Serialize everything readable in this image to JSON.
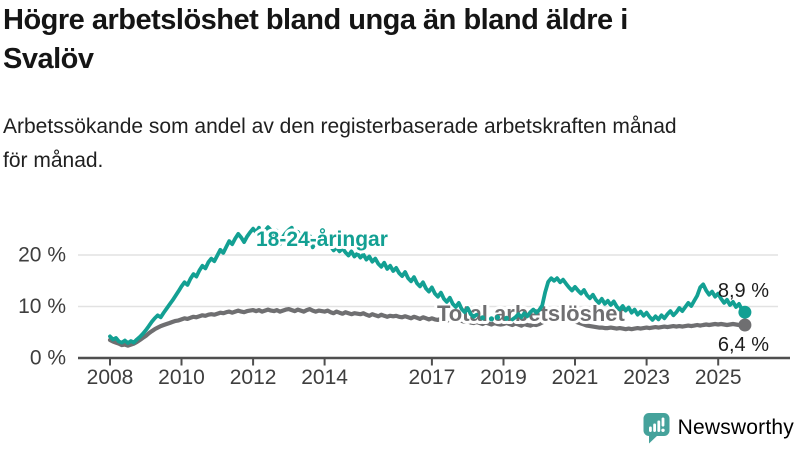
{
  "header": {
    "title": "Högre arbetslöshet bland unga än bland äldre i\nSvalöv",
    "subtitle": "Arbetssökande som andel av den registerbaserade arbetskraften månad\nför månad."
  },
  "chart_data": {
    "type": "line",
    "title": "Högre arbetslöshet bland unga än bland äldre i Svalöv",
    "unit": "%",
    "frequency": "monthly",
    "x_start": "2008-01",
    "x_end": "2025-10",
    "ylim": [
      0,
      27
    ],
    "grid": "horizontal",
    "legend_position": "inline-labels",
    "y_ticks": [
      {
        "value": 0,
        "label": "0 %"
      },
      {
        "value": 10,
        "label": "10 %"
      },
      {
        "value": 20,
        "label": "20 %"
      }
    ],
    "x_ticks": [
      {
        "year": 2008,
        "label": "2008"
      },
      {
        "year": 2010,
        "label": "2010"
      },
      {
        "year": 2012,
        "label": "2012"
      },
      {
        "year": 2014,
        "label": "2014"
      },
      {
        "year": 2017,
        "label": "2017"
      },
      {
        "year": 2019,
        "label": "2019"
      },
      {
        "year": 2021,
        "label": "2021"
      },
      {
        "year": 2023,
        "label": "2023"
      },
      {
        "year": 2025,
        "label": "2025"
      }
    ],
    "series": [
      {
        "name": "18-24-åringar",
        "color": "#13a093",
        "end_label": "8,9 %",
        "last_value": 8.9,
        "values": [
          4.2,
          3.6,
          3.9,
          3.2,
          3.0,
          3.4,
          2.9,
          3.3,
          3.0,
          3.6,
          4.1,
          4.7,
          5.4,
          6.2,
          7.0,
          7.7,
          8.3,
          7.9,
          8.8,
          9.6,
          10.4,
          11.2,
          12.1,
          13.0,
          13.9,
          14.7,
          14.2,
          15.4,
          16.3,
          15.8,
          17.0,
          17.9,
          17.4,
          18.6,
          19.3,
          18.8,
          19.9,
          21.0,
          20.4,
          21.6,
          22.7,
          22.1,
          23.2,
          24.1,
          23.4,
          22.5,
          23.6,
          24.4,
          25.1,
          24.4,
          25.3,
          21.9,
          24.7,
          25.4,
          24.8,
          23.8,
          24.7,
          22.1,
          23.5,
          24.3,
          24.9,
          25.3,
          22.3,
          24.5,
          23.7,
          21.7,
          23.1,
          23.7,
          21.5,
          22.5,
          23.3,
          22.7,
          22.1,
          22.7,
          21.7,
          20.9,
          21.5,
          20.7,
          21.3,
          20.5,
          19.9,
          20.7,
          19.7,
          20.3,
          19.5,
          20.1,
          19.1,
          19.7,
          18.7,
          19.3,
          18.3,
          17.7,
          18.5,
          17.3,
          17.9,
          16.9,
          17.5,
          16.5,
          15.9,
          16.7,
          15.5,
          14.9,
          15.7,
          14.5,
          13.9,
          14.7,
          13.5,
          12.9,
          13.7,
          12.5,
          11.9,
          12.7,
          11.5,
          10.9,
          11.7,
          10.5,
          9.9,
          10.7,
          9.5,
          8.9,
          9.7,
          8.5,
          8.0,
          8.4,
          null,
          7.8,
          null,
          null,
          7.6,
          null,
          7.9,
          null,
          null,
          7.7,
          null,
          7.5,
          7.9,
          8.5,
          7.9,
          8.7,
          8.1,
          8.9,
          9.4,
          8.8,
          9.3,
          10.2,
          12.8,
          14.8,
          15.5,
          15.0,
          15.5,
          14.7,
          15.2,
          14.4,
          13.7,
          13.1,
          13.8,
          13.1,
          12.5,
          13.2,
          12.2,
          11.6,
          12.3,
          11.3,
          10.7,
          11.5,
          10.5,
          11.1,
          10.3,
          11.0,
          10.0,
          9.4,
          10.1,
          9.2,
          9.8,
          8.8,
          9.4,
          8.4,
          9.0,
          8.2,
          8.8,
          8.0,
          7.4,
          8.1,
          7.5,
          8.3,
          7.7,
          8.5,
          9.1,
          8.3,
          8.9,
          9.7,
          9.1,
          9.9,
          10.7,
          10.1,
          11.1,
          12.1,
          13.7,
          14.3,
          13.1,
          12.3,
          12.9,
          11.9,
          12.5,
          11.5,
          10.7,
          11.3,
          10.3,
          10.9,
          9.9,
          10.5,
          9.4,
          8.9
        ]
      },
      {
        "name": "Total arbetslöshet",
        "color": "#6f6f71",
        "end_label": "6,4 %",
        "last_value": 6.4,
        "values": [
          3.5,
          3.2,
          3.0,
          2.8,
          2.5,
          2.6,
          2.4,
          2.6,
          2.8,
          3.1,
          3.5,
          3.9,
          4.3,
          4.8,
          5.2,
          5.6,
          5.9,
          6.2,
          6.4,
          6.6,
          6.8,
          7.0,
          7.2,
          7.3,
          7.5,
          7.7,
          7.6,
          7.8,
          8.0,
          7.9,
          8.1,
          8.3,
          8.2,
          8.4,
          8.5,
          8.4,
          8.6,
          8.8,
          8.7,
          8.9,
          9.0,
          8.8,
          9.0,
          9.2,
          9.0,
          8.9,
          9.1,
          9.2,
          9.3,
          9.1,
          9.3,
          9.0,
          9.2,
          9.4,
          9.2,
          9.1,
          9.3,
          9.0,
          9.2,
          9.4,
          9.5,
          9.3,
          9.1,
          9.4,
          9.2,
          9.0,
          9.3,
          9.5,
          9.2,
          9.0,
          9.2,
          9.1,
          9.0,
          9.2,
          8.9,
          8.7,
          9.0,
          8.8,
          8.6,
          8.9,
          8.7,
          8.5,
          8.7,
          8.6,
          8.5,
          8.7,
          8.4,
          8.2,
          8.5,
          8.3,
          8.1,
          8.4,
          8.2,
          8.0,
          8.2,
          8.1,
          8.2,
          8.0,
          7.9,
          8.1,
          7.9,
          7.7,
          8.0,
          7.8,
          7.6,
          7.9,
          7.7,
          7.5,
          7.7,
          7.5,
          7.4,
          7.6,
          7.4,
          7.2,
          7.5,
          7.3,
          7.1,
          7.3,
          7.2,
          7.0,
          7.1,
          6.9,
          6.8,
          7.0,
          6.8,
          6.6,
          6.9,
          6.7,
          6.5,
          6.8,
          6.6,
          6.5,
          6.6,
          6.8,
          6.6,
          6.4,
          6.7,
          6.5,
          6.3,
          6.6,
          6.4,
          6.3,
          6.5,
          6.4,
          6.6,
          6.9,
          7.5,
          7.9,
          8.1,
          8.0,
          8.2,
          8.1,
          7.9,
          7.7,
          7.5,
          7.3,
          7.1,
          6.9,
          6.7,
          6.5,
          6.3,
          6.2,
          6.1,
          6.0,
          5.9,
          5.9,
          5.8,
          5.8,
          5.9,
          5.8,
          5.7,
          5.8,
          5.7,
          5.6,
          5.7,
          5.6,
          5.7,
          5.8,
          5.7,
          5.8,
          5.9,
          5.8,
          5.9,
          6.0,
          5.9,
          6.0,
          6.1,
          6.0,
          6.1,
          6.2,
          6.1,
          6.2,
          6.1,
          6.2,
          6.3,
          6.2,
          6.3,
          6.4,
          6.3,
          6.4,
          6.5,
          6.4,
          6.5,
          6.6,
          6.5,
          6.6,
          6.5,
          6.4,
          6.5,
          6.6,
          6.5,
          6.4,
          6.5,
          6.4
        ]
      }
    ]
  },
  "footer": {
    "logo_text": "Newsworthy",
    "logo_color": "#45a29b"
  }
}
